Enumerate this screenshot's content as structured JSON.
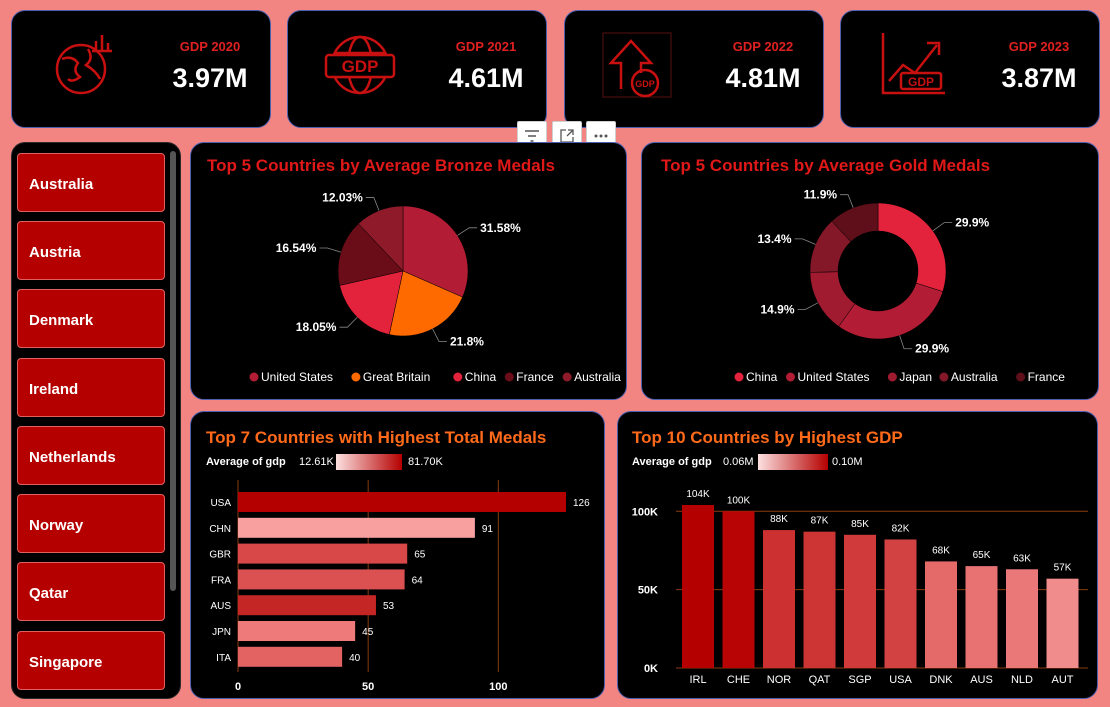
{
  "kpis": [
    {
      "title": "GDP 2020",
      "value": "3.97M",
      "icon": "globe-chart-icon"
    },
    {
      "title": "GDP 2021",
      "value": "4.61M",
      "icon": "gdp-globe-icon"
    },
    {
      "title": "GDP 2022",
      "value": "4.81M",
      "icon": "gdp-growth-arrow-icon"
    },
    {
      "title": "GDP 2023",
      "value": "3.87M",
      "icon": "gdp-trend-chart-icon"
    }
  ],
  "slicer": {
    "items": [
      "Australia",
      "Austria",
      "Denmark",
      "Ireland",
      "Netherlands",
      "Norway",
      "Qatar",
      "Singapore"
    ]
  },
  "toolbar": {
    "icons": [
      "filter-icon",
      "focus-mode-icon",
      "more-options-icon"
    ]
  },
  "colors": {
    "accent_red": "#e02020",
    "bar_dark": "#b50000",
    "bar_light": "#f8a5a5",
    "background": "#f28582",
    "panel": "#000000"
  },
  "charts": [
    {
      "type": "pie",
      "title": "Top 5 Countries by Average Bronze Medals",
      "slices": [
        {
          "name": "United States",
          "value": 31.58,
          "label": "31.58%",
          "color": "#b21c34"
        },
        {
          "name": "Great Britain",
          "value": 21.8,
          "label": "21.8%",
          "color": "#ff6a00"
        },
        {
          "name": "China",
          "value": 18.05,
          "label": "18.05%",
          "color": "#e3223c"
        },
        {
          "name": "France",
          "value": 16.54,
          "label": "16.54%",
          "color": "#6a0d18"
        },
        {
          "name": "Australia",
          "value": 12.03,
          "label": "12.03%",
          "color": "#8e1a2a"
        }
      ]
    },
    {
      "type": "donut",
      "title": "Top 5 Countries by Average Gold Medals",
      "slices": [
        {
          "name": "China",
          "value": 29.9,
          "label": "29.9%",
          "color": "#e3223c"
        },
        {
          "name": "United States",
          "value": 29.9,
          "label": "29.9%",
          "color": "#b21c34"
        },
        {
          "name": "Japan",
          "value": 14.9,
          "label": "14.9%",
          "color": "#a01a30"
        },
        {
          "name": "Australia",
          "value": 13.4,
          "label": "13.4%",
          "color": "#851828"
        },
        {
          "name": "France",
          "value": 11.9,
          "label": "11.9%",
          "color": "#5e0f1a"
        }
      ]
    },
    {
      "type": "bar",
      "orientation": "horizontal",
      "title": "Top 7 Countries with Highest Total Medals",
      "legend": {
        "label": "Average of gdp",
        "min": "12.61K",
        "max": "81.70K"
      },
      "categories": [
        "USA",
        "CHN",
        "GBR",
        "FRA",
        "AUS",
        "JPN",
        "ITA"
      ],
      "values": [
        126,
        91,
        65,
        64,
        53,
        45,
        40
      ],
      "value_labels": [
        "126",
        "91",
        "65",
        "64",
        "53",
        "45",
        "40"
      ],
      "colors": [
        "#b50000",
        "#f8a0a0",
        "#d94848",
        "#db5050",
        "#c42626",
        "#ee7a7a",
        "#e36363"
      ],
      "xlim": [
        0,
        126
      ],
      "xticks": [
        0,
        50,
        100
      ],
      "xtick_labels": [
        "0",
        "50",
        "100"
      ]
    },
    {
      "type": "bar",
      "orientation": "vertical",
      "title": "Top 10 Countries by Highest GDP",
      "legend": {
        "label": "Average of gdp",
        "min": "0.06M",
        "max": "0.10M"
      },
      "categories": [
        "IRL",
        "CHE",
        "NOR",
        "QAT",
        "SGP",
        "USA",
        "DNK",
        "AUS",
        "NLD",
        "AUT"
      ],
      "values": [
        104,
        100,
        88,
        87,
        85,
        82,
        68,
        65,
        63,
        57
      ],
      "value_labels": [
        "104K",
        "100K",
        "88K",
        "87K",
        "85K",
        "82K",
        "68K",
        "65K",
        "63K",
        "57K"
      ],
      "colors": [
        "#b50000",
        "#b80404",
        "#cc3030",
        "#cd3434",
        "#d03a3a",
        "#d34242",
        "#e46a6a",
        "#e87272",
        "#ea7878",
        "#f08c8c"
      ],
      "ylim": [
        0,
        104
      ],
      "yticks": [
        0,
        50,
        100
      ],
      "ytick_labels": [
        "0K",
        "50K",
        "100K"
      ]
    }
  ]
}
